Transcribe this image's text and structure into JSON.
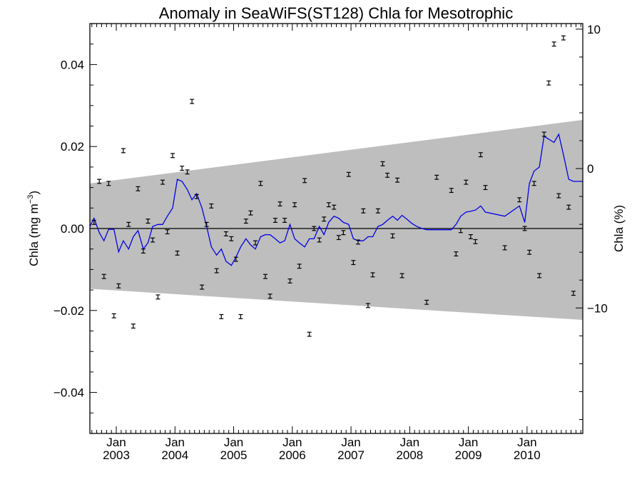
{
  "chart_data": {
    "type": "scatter",
    "title": "Anomaly in SeaWiFS(ST128) Chla for Mesotrophic",
    "ylabel_left_text": "Chla (mg m",
    "ylabel_left_sup": "−3",
    "ylabel_left_close": ")",
    "ylabel_right": "Chla (%)",
    "xlim": [
      2002.55,
      2010.95
    ],
    "ylim": [
      -0.05,
      0.05
    ],
    "ylim_right": [
      -19,
      10.4
    ],
    "left_ticks": [
      0.04,
      0.02,
      0.0,
      -0.02,
      -0.04
    ],
    "left_tick_labels": [
      "0.04",
      "0.02",
      "0.00",
      "−0.02",
      "−0.04"
    ],
    "right_ticks": [
      10,
      0,
      -10
    ],
    "right_tick_labels": [
      "10",
      "0",
      "−10"
    ],
    "x_ticks": [
      {
        "x": 2003.0,
        "month": "Jan",
        "year": "2003"
      },
      {
        "x": 2004.0,
        "month": "Jan",
        "year": "2004"
      },
      {
        "x": 2005.0,
        "month": "Jan",
        "year": "2005"
      },
      {
        "x": 2006.0,
        "month": "Jan",
        "year": "2006"
      },
      {
        "x": 2007.0,
        "month": "Jan",
        "year": "2007"
      },
      {
        "x": 2008.0,
        "month": "Jan",
        "year": "2008"
      },
      {
        "x": 2009.0,
        "month": "Jan",
        "year": "2009"
      },
      {
        "x": 2010.0,
        "month": "Jan",
        "year": "2010"
      }
    ],
    "band": {
      "upper": [
        [
          2002.55,
          0.011
        ],
        [
          2010.95,
          0.0265
        ]
      ],
      "lower": [
        [
          2002.55,
          -0.0147
        ],
        [
          2010.95,
          -0.0223
        ]
      ]
    },
    "zero_line": 0.0,
    "error_half_width": 0.0005,
    "points": [
      [
        2002.62,
        0.0015
      ],
      [
        2002.71,
        0.0115
      ],
      [
        2002.79,
        -0.0117
      ],
      [
        2002.87,
        0.011
      ],
      [
        2002.96,
        -0.0213
      ],
      [
        2003.04,
        -0.014
      ],
      [
        2003.12,
        0.019
      ],
      [
        2003.21,
        0.001
      ],
      [
        2003.29,
        -0.0238
      ],
      [
        2003.37,
        0.0097
      ],
      [
        2003.46,
        -0.0055
      ],
      [
        2003.54,
        0.0018
      ],
      [
        2003.62,
        -0.0028
      ],
      [
        2003.71,
        -0.0167
      ],
      [
        2003.79,
        0.0113
      ],
      [
        2003.87,
        -0.0008
      ],
      [
        2003.96,
        0.0178
      ],
      [
        2004.04,
        -0.006
      ],
      [
        2004.12,
        0.0147
      ],
      [
        2004.21,
        0.0138
      ],
      [
        2004.29,
        0.031
      ],
      [
        2004.37,
        0.0078
      ],
      [
        2004.46,
        -0.0143
      ],
      [
        2004.54,
        0.001
      ],
      [
        2004.62,
        0.0055
      ],
      [
        2004.71,
        -0.0103
      ],
      [
        2004.79,
        -0.0215
      ],
      [
        2004.87,
        -0.0013
      ],
      [
        2004.96,
        -0.0025
      ],
      [
        2005.04,
        -0.0075
      ],
      [
        2005.12,
        -0.0215
      ],
      [
        2005.21,
        0.0018
      ],
      [
        2005.29,
        0.0038
      ],
      [
        2005.37,
        -0.0035
      ],
      [
        2005.46,
        0.011
      ],
      [
        2005.54,
        -0.0117
      ],
      [
        2005.62,
        -0.0165
      ],
      [
        2005.71,
        0.002
      ],
      [
        2005.79,
        0.006
      ],
      [
        2005.87,
        0.002
      ],
      [
        2005.96,
        -0.0128
      ],
      [
        2006.04,
        0.0058
      ],
      [
        2006.12,
        -0.0092
      ],
      [
        2006.21,
        0.0117
      ],
      [
        2006.29,
        -0.0258
      ],
      [
        2006.37,
        0.0
      ],
      [
        2006.46,
        -0.0028
      ],
      [
        2006.54,
        0.0023
      ],
      [
        2006.62,
        0.0058
      ],
      [
        2006.71,
        0.0052
      ],
      [
        2006.79,
        -0.0022
      ],
      [
        2006.87,
        -0.001
      ],
      [
        2006.96,
        0.0132
      ],
      [
        2007.04,
        -0.0083
      ],
      [
        2007.12,
        -0.0033
      ],
      [
        2007.21,
        0.0043
      ],
      [
        2007.29,
        -0.0188
      ],
      [
        2007.37,
        -0.0113
      ],
      [
        2007.46,
        0.0043
      ],
      [
        2007.54,
        0.0158
      ],
      [
        2007.62,
        0.013
      ],
      [
        2007.71,
        -0.0018
      ],
      [
        2007.79,
        0.0118
      ],
      [
        2007.87,
        -0.0115
      ],
      [
        2008.29,
        -0.018
      ],
      [
        2008.46,
        0.0125
      ],
      [
        2008.71,
        0.0093
      ],
      [
        2008.79,
        -0.0062
      ],
      [
        2008.87,
        -0.0005
      ],
      [
        2008.96,
        0.0113
      ],
      [
        2009.04,
        -0.002
      ],
      [
        2009.12,
        -0.0032
      ],
      [
        2009.21,
        0.018
      ],
      [
        2009.29,
        0.01
      ],
      [
        2009.62,
        -0.0047
      ],
      [
        2009.87,
        0.007
      ],
      [
        2009.96,
        0.0
      ],
      [
        2010.04,
        -0.0058
      ],
      [
        2010.12,
        0.011
      ],
      [
        2010.21,
        -0.0115
      ],
      [
        2010.29,
        0.023
      ],
      [
        2010.37,
        0.0355
      ],
      [
        2010.46,
        0.045
      ],
      [
        2010.54,
        0.008
      ],
      [
        2010.62,
        0.0465
      ],
      [
        2010.71,
        0.0052
      ],
      [
        2010.79,
        -0.0158
      ]
    ],
    "trend_line": [
      [
        2002.55,
        0.0005
      ],
      [
        2002.62,
        0.0025
      ],
      [
        2002.71,
        -0.001
      ],
      [
        2002.79,
        -0.003
      ],
      [
        2002.87,
        -0.0002
      ],
      [
        2002.96,
        -0.0002
      ],
      [
        2003.04,
        -0.0057
      ],
      [
        2003.12,
        -0.003
      ],
      [
        2003.21,
        -0.005
      ],
      [
        2003.29,
        -0.002
      ],
      [
        2003.37,
        -0.0005
      ],
      [
        2003.46,
        -0.005
      ],
      [
        2003.54,
        -0.0035
      ],
      [
        2003.62,
        0.0005
      ],
      [
        2003.71,
        0.001
      ],
      [
        2003.79,
        0.001
      ],
      [
        2003.87,
        0.003
      ],
      [
        2003.96,
        0.005
      ],
      [
        2004.04,
        0.012
      ],
      [
        2004.12,
        0.0115
      ],
      [
        2004.21,
        0.0095
      ],
      [
        2004.29,
        0.007
      ],
      [
        2004.37,
        0.0085
      ],
      [
        2004.46,
        0.005
      ],
      [
        2004.54,
        0.0005
      ],
      [
        2004.62,
        -0.0045
      ],
      [
        2004.71,
        -0.0065
      ],
      [
        2004.79,
        -0.005
      ],
      [
        2004.87,
        -0.008
      ],
      [
        2004.96,
        -0.009
      ],
      [
        2005.04,
        -0.007
      ],
      [
        2005.12,
        -0.0045
      ],
      [
        2005.21,
        -0.0025
      ],
      [
        2005.29,
        -0.004
      ],
      [
        2005.37,
        -0.005
      ],
      [
        2005.46,
        -0.002
      ],
      [
        2005.54,
        -0.0015
      ],
      [
        2005.62,
        -0.0015
      ],
      [
        2005.71,
        -0.0025
      ],
      [
        2005.79,
        -0.0035
      ],
      [
        2005.87,
        -0.003
      ],
      [
        2005.96,
        0.001
      ],
      [
        2006.04,
        -0.0025
      ],
      [
        2006.12,
        -0.0035
      ],
      [
        2006.21,
        -0.0045
      ],
      [
        2006.29,
        -0.0025
      ],
      [
        2006.37,
        -0.0025
      ],
      [
        2006.46,
        0.0005
      ],
      [
        2006.54,
        -0.0015
      ],
      [
        2006.62,
        0.0015
      ],
      [
        2006.71,
        0.003
      ],
      [
        2006.79,
        0.0025
      ],
      [
        2006.87,
        0.0015
      ],
      [
        2006.96,
        0.001
      ],
      [
        2007.04,
        -0.0025
      ],
      [
        2007.12,
        -0.003
      ],
      [
        2007.21,
        -0.003
      ],
      [
        2007.29,
        -0.002
      ],
      [
        2007.37,
        -0.002
      ],
      [
        2007.46,
        0.0005
      ],
      [
        2007.54,
        0.001
      ],
      [
        2007.62,
        0.002
      ],
      [
        2007.71,
        0.003
      ],
      [
        2007.79,
        0.002
      ],
      [
        2007.87,
        0.0032
      ],
      [
        2007.96,
        0.0022
      ],
      [
        2008.04,
        0.0012
      ],
      [
        2008.12,
        0.0005
      ],
      [
        2008.21,
        0.0
      ],
      [
        2008.29,
        -0.0003
      ],
      [
        2008.71,
        -0.0003
      ],
      [
        2008.79,
        0.001
      ],
      [
        2008.87,
        0.003
      ],
      [
        2008.96,
        0.004
      ],
      [
        2009.04,
        0.0042
      ],
      [
        2009.12,
        0.0045
      ],
      [
        2009.21,
        0.0055
      ],
      [
        2009.29,
        0.004
      ],
      [
        2009.62,
        0.003
      ],
      [
        2009.87,
        0.0055
      ],
      [
        2009.96,
        0.0015
      ],
      [
        2010.04,
        0.011
      ],
      [
        2010.12,
        0.014
      ],
      [
        2010.21,
        0.015
      ],
      [
        2010.29,
        0.0225
      ],
      [
        2010.46,
        0.021
      ],
      [
        2010.54,
        0.023
      ],
      [
        2010.62,
        0.018
      ],
      [
        2010.71,
        0.012
      ],
      [
        2010.79,
        0.0115
      ],
      [
        2010.95,
        0.0115
      ]
    ],
    "colors": {
      "band": "#bebebe",
      "trend": "#0000e6",
      "axes": "#000000"
    }
  }
}
